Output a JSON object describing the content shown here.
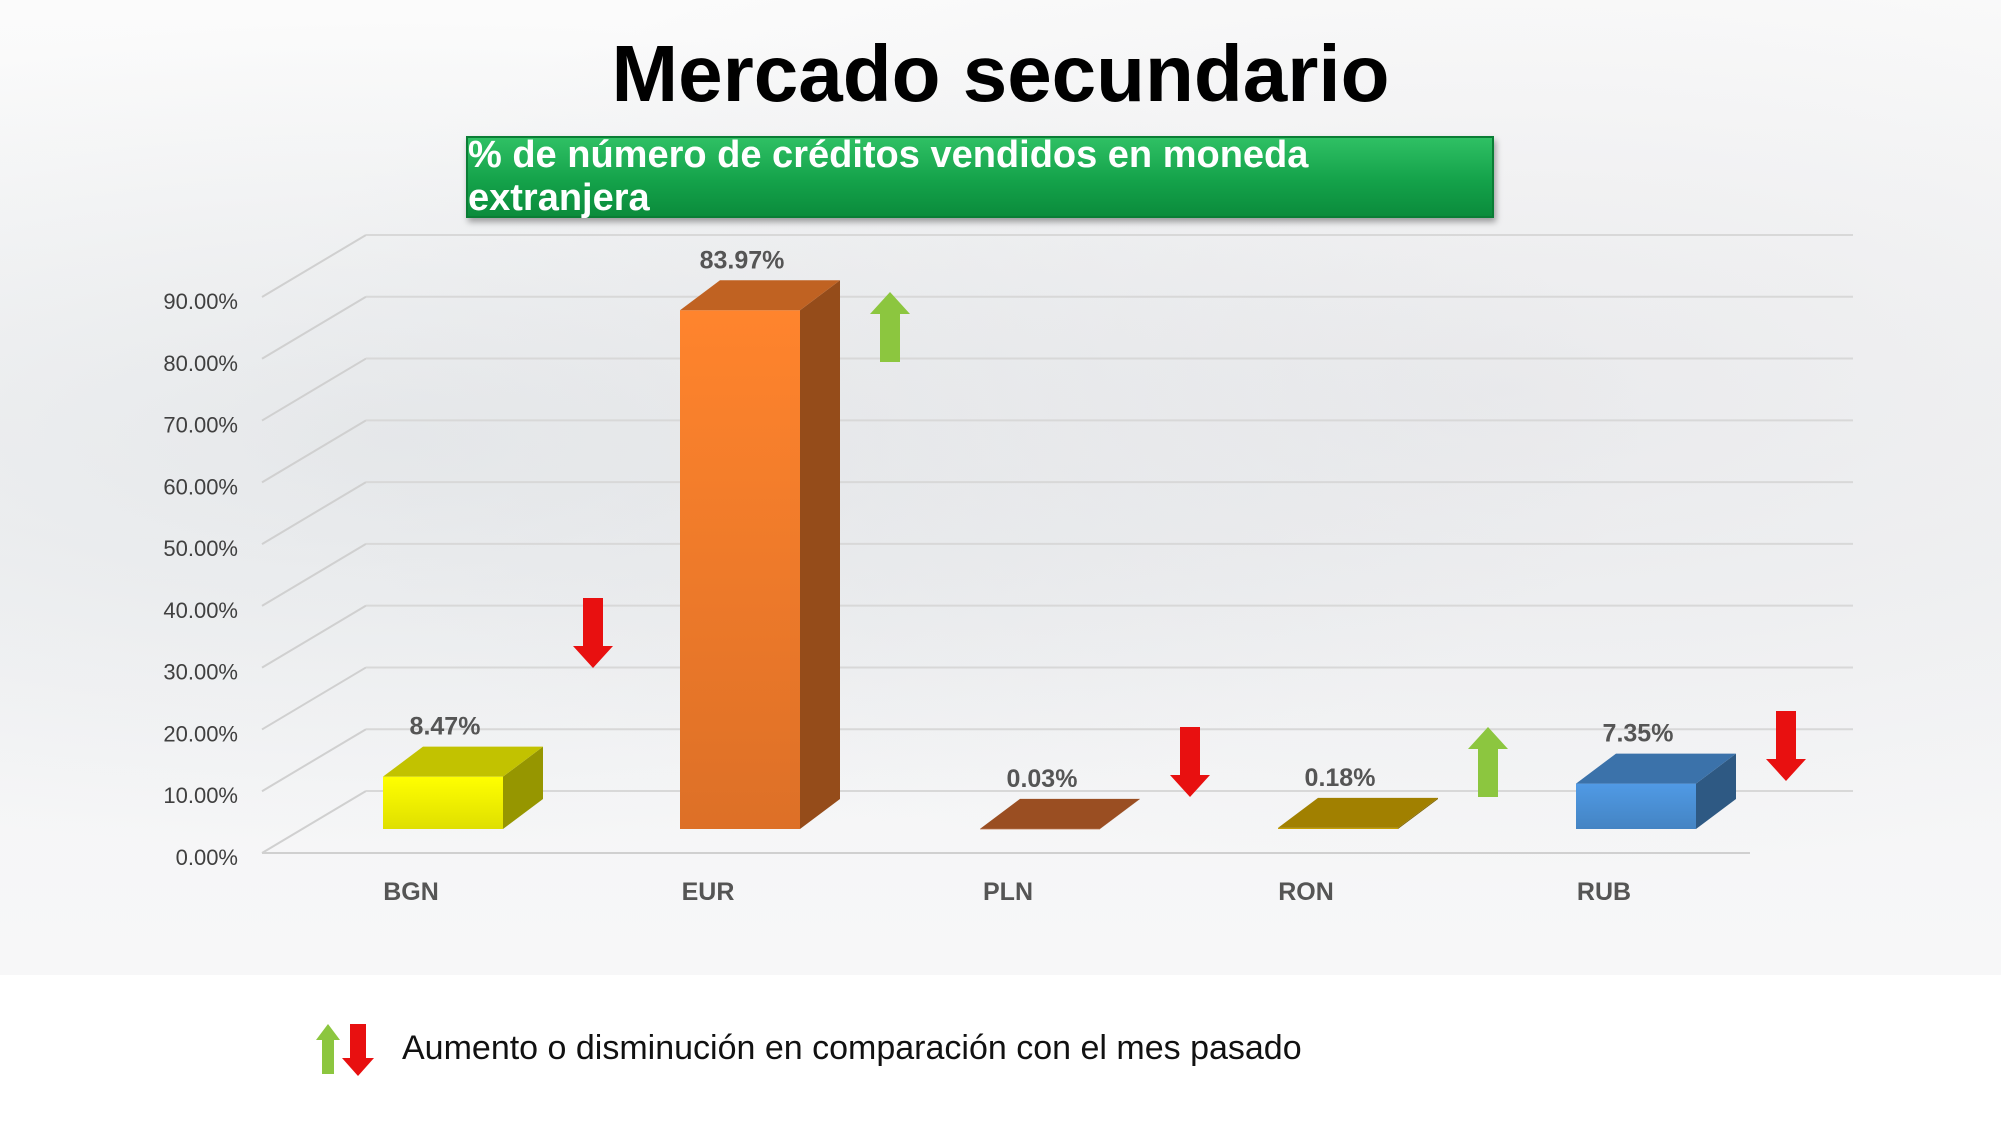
{
  "title": "Mercado secundario",
  "subtitle": "% de número de créditos vendidos en moneda extranjera",
  "legend_text": "Aumento o disminución en comparación con el mes pasado",
  "chart_data": {
    "type": "bar",
    "categories": [
      "BGN",
      "EUR",
      "PLN",
      "RON",
      "RUB"
    ],
    "values": [
      8.47,
      83.97,
      0.03,
      0.18,
      7.35
    ],
    "value_labels": [
      "8.47%",
      "83.97%",
      "0.03%",
      "0.18%",
      "7.35%"
    ],
    "trend": [
      "down",
      "up",
      "down",
      "up",
      "down"
    ],
    "bar_colors": [
      "#f2f200",
      "#f07a2a",
      "#c0622a",
      "#c9a000",
      "#4a8fd4"
    ],
    "ylim": [
      0,
      90
    ],
    "yticks": [
      "0.00%",
      "10.00%",
      "20.00%",
      "30.00%",
      "40.00%",
      "50.00%",
      "60.00%",
      "70.00%",
      "80.00%",
      "90.00%"
    ],
    "grid": true,
    "trend_colors": {
      "up": "#8cc63f",
      "down": "#e81010"
    }
  }
}
